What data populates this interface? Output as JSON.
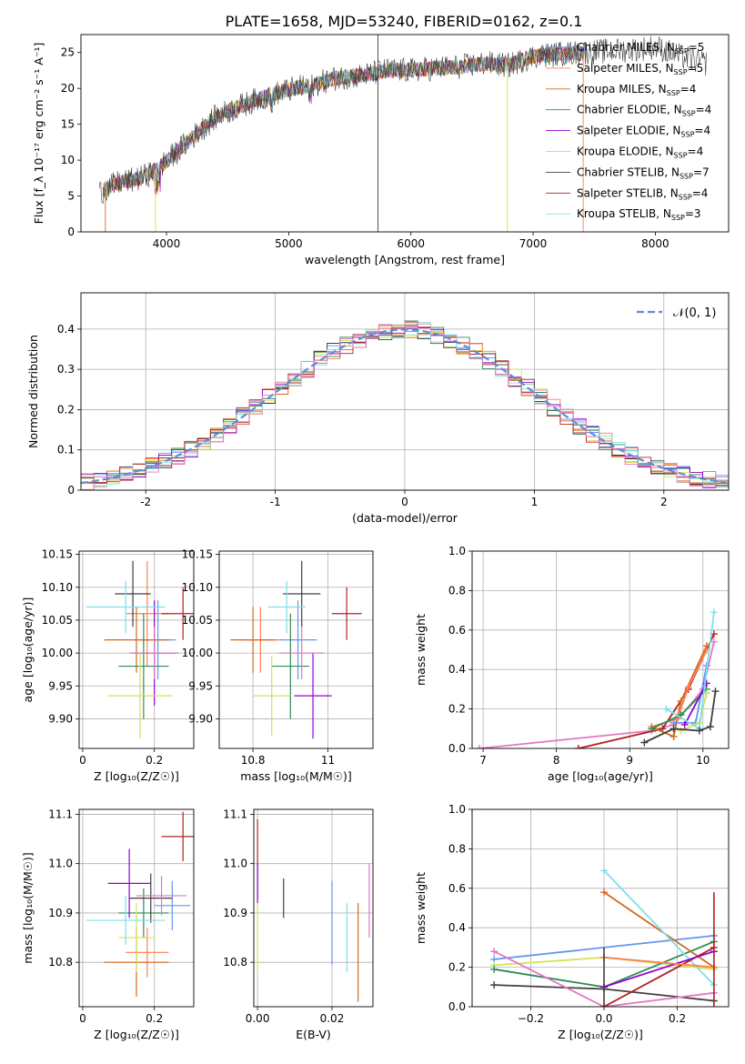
{
  "figure_title": "PLATE=1658, MJD=53240, FIBERID=0162, z=0.1",
  "colors": {
    "chabrier_miles": "#6495ed",
    "salpeter_miles": "#ff7f50",
    "kroupa_miles": "#d2691e",
    "chabrier_elodie": "#2e8b57",
    "salpeter_elodie": "#9400d3",
    "kroupa_elodie": "#d4e157",
    "chabrier_stelib": "#404040",
    "salpeter_stelib": "#b22222",
    "kroupa_stelib": "#80deea",
    "pink": "#e377c2",
    "grey": "#808080",
    "normal": "#5a8fd6"
  },
  "chart_data": [
    {
      "id": "spectrum",
      "type": "line",
      "xlabel": "wavelength [Angstrom, rest frame]",
      "ylabel": "Flux [f_λ 10⁻¹⁷ erg cm⁻² s⁻¹ A⁻¹]",
      "xlim": [
        3300,
        8600
      ],
      "ylim": [
        0,
        27.5
      ],
      "xticks": [
        4000,
        5000,
        6000,
        7000,
        8000
      ],
      "yticks": [
        0,
        5,
        10,
        15,
        20,
        25
      ],
      "grid": false,
      "legend_position": "right",
      "legend": [
        {
          "label": "Chabrier MILES, N",
          "sub": "SSP",
          "suffix": "=5",
          "color": "#6495ed"
        },
        {
          "label": "Salpeter MILES, N",
          "sub": "SSP",
          "suffix": "=5",
          "color": "#ff7f50"
        },
        {
          "label": "Kroupa MILES, N",
          "sub": "SSP",
          "suffix": "=4",
          "color": "#d2691e"
        },
        {
          "label": "Chabrier ELODIE, N",
          "sub": "SSP",
          "suffix": "=4",
          "color": "#2e8b57"
        },
        {
          "label": "Salpeter ELODIE, N",
          "sub": "SSP",
          "suffix": "=4",
          "color": "#9400d3"
        },
        {
          "label": "Kroupa ELODIE, N",
          "sub": "SSP",
          "suffix": "=4",
          "color": "#d4e157"
        },
        {
          "label": "Chabrier STELIB, N",
          "sub": "SSP",
          "suffix": "=7",
          "color": "#404040"
        },
        {
          "label": "Salpeter STELIB, N",
          "sub": "SSP",
          "suffix": "=4",
          "color": "#b22222"
        },
        {
          "label": "Kroupa STELIB, N",
          "sub": "SSP",
          "suffix": "=3",
          "color": "#80deea"
        }
      ],
      "continuum": {
        "x": [
          3450,
          3600,
          3800,
          4000,
          4200,
          4400,
          4600,
          4800,
          5000,
          5200,
          5400,
          5600,
          5800,
          6000,
          6200,
          6400,
          6600,
          6800,
          7000,
          7200,
          7400,
          7600,
          7800,
          8000,
          8200,
          8400
        ],
        "y": [
          5.5,
          6.8,
          7.5,
          9.8,
          13.0,
          16.0,
          17.5,
          18.8,
          19.8,
          20.5,
          21.5,
          21.8,
          22.5,
          22.5,
          22.8,
          23.0,
          23.5,
          23.2,
          24.5,
          24.8,
          25.0,
          25.2,
          25.4,
          25.8,
          24.5,
          23.5
        ]
      },
      "spikes": [
        {
          "x": 3500,
          "y": 0,
          "color": "#d2691e"
        },
        {
          "x": 3910,
          "y": 0,
          "color": "#d4e157"
        },
        {
          "x": 5730,
          "y": 0,
          "color": "#404040"
        },
        {
          "x": 6790,
          "y": 0,
          "color": "#d4e157"
        },
        {
          "x": 7410,
          "y": 0,
          "color": "#ff7f50"
        },
        {
          "x": 5730,
          "y": 27.5,
          "color": "#404040"
        }
      ]
    },
    {
      "id": "residuals",
      "type": "line",
      "xlabel": "(data-model)/error",
      "ylabel": "Normed distribution",
      "xlim": [
        -2.5,
        2.5
      ],
      "ylim": [
        0,
        0.49
      ],
      "xticks": [
        -2,
        -1,
        0,
        1,
        2
      ],
      "yticks": [
        0.0,
        0.1,
        0.2,
        0.3,
        0.4
      ],
      "grid": true,
      "legend_position": "top-right",
      "normal_label": "𝒩(0, 1)",
      "bin_width": 0.1,
      "series_colors": [
        "#6495ed",
        "#ff7f50",
        "#d2691e",
        "#2e8b57",
        "#9400d3",
        "#d4e157",
        "#404040",
        "#b22222",
        "#80deea",
        "#e377c2"
      ]
    },
    {
      "id": "age_vs_Z",
      "type": "scatter",
      "xlabel": "Z [log₁₀(Z/Z☉)]",
      "ylabel": "age  [log₁₀(age/yr)]",
      "xlim": [
        -0.01,
        0.31
      ],
      "ylim": [
        9.855,
        10.155
      ],
      "xticks": [
        0.0,
        0.2
      ],
      "yticks": [
        9.9,
        9.95,
        10.0,
        10.05,
        10.1,
        10.15
      ],
      "ytick_labels": [
        "9.90",
        "9.95",
        "10.00",
        "10.05",
        "10.10",
        "10.15"
      ],
      "grid": true,
      "points": [
        {
          "x": 0.21,
          "y": 10.02,
          "xerr": 0.05,
          "yerr": 0.06,
          "color": "#6495ed"
        },
        {
          "x": 0.18,
          "y": 10.06,
          "xerr": 0.06,
          "yerr": 0.08,
          "color": "#ff7f50"
        },
        {
          "x": 0.15,
          "y": 10.02,
          "xerr": 0.09,
          "yerr": 0.05,
          "color": "#d2691e"
        },
        {
          "x": 0.17,
          "y": 9.98,
          "xerr": 0.07,
          "yerr": 0.08,
          "color": "#2e8b57"
        },
        {
          "x": 0.2,
          "y": 10.0,
          "xerr": 0.06,
          "yerr": 0.08,
          "color": "#9400d3"
        },
        {
          "x": 0.16,
          "y": 9.935,
          "xerr": 0.09,
          "yerr": 0.065,
          "color": "#d4e157"
        },
        {
          "x": 0.14,
          "y": 10.09,
          "xerr": 0.05,
          "yerr": 0.05,
          "color": "#404040"
        },
        {
          "x": 0.28,
          "y": 10.06,
          "xerr": 0.06,
          "yerr": 0.04,
          "color": "#b22222"
        },
        {
          "x": 0.12,
          "y": 10.07,
          "xerr": 0.11,
          "yerr": 0.04,
          "color": "#80deea"
        },
        {
          "x": 0.2,
          "y": 10.0,
          "xerr": 0.07,
          "yerr": 0.04,
          "color": "#e377c2"
        }
      ]
    },
    {
      "id": "age_vs_mass",
      "type": "scatter",
      "xlabel": "mass [log₁₀(M/M☉)]",
      "ylabel": "",
      "xlim": [
        10.71,
        11.12
      ],
      "ylim": [
        9.855,
        10.155
      ],
      "xticks": [
        10.8,
        11.0
      ],
      "yticks": [
        9.9,
        9.95,
        10.0,
        10.05,
        10.1,
        10.15
      ],
      "ytick_labels": [
        "9.90",
        "9.95",
        "10.00",
        "10.05",
        "10.10",
        "10.15"
      ],
      "grid": true,
      "points": [
        {
          "x": 10.92,
          "y": 10.02,
          "xerr": 0.05,
          "yerr": 0.06,
          "color": "#6495ed"
        },
        {
          "x": 10.82,
          "y": 10.02,
          "xerr": 0.05,
          "yerr": 0.05,
          "color": "#ff7f50"
        },
        {
          "x": 10.8,
          "y": 10.02,
          "xerr": 0.06,
          "yerr": 0.05,
          "color": "#d2691e"
        },
        {
          "x": 10.9,
          "y": 9.98,
          "xerr": 0.05,
          "yerr": 0.08,
          "color": "#2e8b57"
        },
        {
          "x": 10.96,
          "y": 9.935,
          "xerr": 0.05,
          "yerr": 0.065,
          "color": "#9400d3"
        },
        {
          "x": 10.85,
          "y": 9.935,
          "xerr": 0.05,
          "yerr": 0.06,
          "color": "#d4e157"
        },
        {
          "x": 10.93,
          "y": 10.09,
          "xerr": 0.05,
          "yerr": 0.05,
          "color": "#404040"
        },
        {
          "x": 11.05,
          "y": 10.06,
          "xerr": 0.04,
          "yerr": 0.04,
          "color": "#b22222"
        },
        {
          "x": 10.89,
          "y": 10.07,
          "xerr": 0.05,
          "yerr": 0.04,
          "color": "#80deea"
        },
        {
          "x": 10.93,
          "y": 10.0,
          "xerr": 0.06,
          "yerr": 0.04,
          "color": "#e377c2"
        }
      ]
    },
    {
      "id": "massweight_vs_age",
      "type": "line",
      "xlabel": "age  [log₁₀(age/yr)]",
      "ylabel": "mass weight",
      "xlim": [
        6.85,
        10.35
      ],
      "ylim": [
        0,
        1.0
      ],
      "xticks": [
        7,
        8,
        9,
        10
      ],
      "yticks": [
        0.0,
        0.2,
        0.4,
        0.6,
        0.8,
        1.0
      ],
      "ytick_labels": [
        "0.0",
        "0.2",
        "0.4",
        "0.6",
        "0.8",
        "1.0"
      ],
      "grid": true,
      "series": [
        {
          "color": "#e377c2",
          "x": [
            6.95,
            9.3,
            9.6,
            10.0,
            10.15
          ],
          "y": [
            0.0,
            0.09,
            0.12,
            0.3,
            0.54
          ]
        },
        {
          "color": "#b22222",
          "x": [
            8.3,
            9.45,
            9.8,
            10.15
          ],
          "y": [
            0.0,
            0.1,
            0.3,
            0.58
          ]
        },
        {
          "color": "#d2691e",
          "x": [
            9.35,
            9.6,
            9.7,
            10.05
          ],
          "y": [
            0.1,
            0.06,
            0.24,
            0.52
          ]
        },
        {
          "color": "#ff7f50",
          "x": [
            9.3,
            9.65,
            9.8,
            10.05
          ],
          "y": [
            0.11,
            0.15,
            0.31,
            0.5
          ]
        },
        {
          "color": "#2e8b57",
          "x": [
            9.3,
            9.7,
            10.05
          ],
          "y": [
            0.1,
            0.17,
            0.3
          ]
        },
        {
          "color": "#6495ed",
          "x": [
            9.6,
            9.9,
            10.05
          ],
          "y": [
            0.13,
            0.13,
            0.42
          ]
        },
        {
          "color": "#9400d3",
          "x": [
            9.75,
            10.05
          ],
          "y": [
            0.12,
            0.33
          ]
        },
        {
          "color": "#d4e157",
          "x": [
            9.7,
            9.95,
            10.05
          ],
          "y": [
            0.09,
            0.13,
            0.28
          ]
        },
        {
          "color": "#80deea",
          "x": [
            9.5,
            9.95,
            10.15
          ],
          "y": [
            0.2,
            0.1,
            0.69
          ]
        },
        {
          "color": "#404040",
          "x": [
            9.2,
            9.6,
            9.95,
            10.1,
            10.17
          ],
          "y": [
            0.03,
            0.1,
            0.09,
            0.11,
            0.29
          ]
        }
      ]
    },
    {
      "id": "mass_vs_Z",
      "type": "scatter",
      "xlabel": "Z [log₁₀(Z/Z☉)]",
      "ylabel": "mass [log₁₀(M/M☉)]",
      "xlim": [
        -0.01,
        0.31
      ],
      "ylim": [
        10.71,
        11.11
      ],
      "xticks": [
        0.0,
        0.2
      ],
      "yticks": [
        10.8,
        10.9,
        11.0,
        11.1
      ],
      "ytick_labels": [
        "10.8",
        "10.9",
        "11.0",
        "11.1"
      ],
      "grid": true,
      "points": [
        {
          "x": 0.25,
          "y": 10.915,
          "xerr": 0.05,
          "yerr": 0.05,
          "color": "#6495ed"
        },
        {
          "x": 0.18,
          "y": 10.82,
          "xerr": 0.06,
          "yerr": 0.05,
          "color": "#ff7f50"
        },
        {
          "x": 0.15,
          "y": 10.8,
          "xerr": 0.09,
          "yerr": 0.07,
          "color": "#d2691e"
        },
        {
          "x": 0.17,
          "y": 10.9,
          "xerr": 0.07,
          "yerr": 0.05,
          "color": "#2e8b57"
        },
        {
          "x": 0.13,
          "y": 10.96,
          "xerr": 0.06,
          "yerr": 0.07,
          "color": "#9400d3"
        },
        {
          "x": 0.15,
          "y": 10.85,
          "xerr": 0.05,
          "yerr": 0.07,
          "color": "#d4e157"
        },
        {
          "x": 0.19,
          "y": 10.93,
          "xerr": 0.06,
          "yerr": 0.05,
          "color": "#404040"
        },
        {
          "x": 0.28,
          "y": 11.055,
          "xerr": 0.06,
          "yerr": 0.05,
          "color": "#b22222"
        },
        {
          "x": 0.12,
          "y": 10.885,
          "xerr": 0.11,
          "yerr": 0.05,
          "color": "#80deea"
        },
        {
          "x": 0.22,
          "y": 10.935,
          "xerr": 0.07,
          "yerr": 0.04,
          "color": "#e377c2"
        }
      ]
    },
    {
      "id": "mass_vs_ebv",
      "type": "scatter",
      "xlabel": "E(B-V)",
      "ylabel": "",
      "xlim": [
        -0.001,
        0.031
      ],
      "ylim": [
        10.71,
        11.11
      ],
      "xticks": [
        0.0,
        0.02
      ],
      "xtick_labels": [
        "0.00",
        "0.02"
      ],
      "yticks": [
        10.8,
        10.9,
        11.0,
        11.1
      ],
      "ytick_labels": [
        "10.8",
        "10.9",
        "11.0",
        "11.1"
      ],
      "grid": true,
      "points": [
        {
          "x": 0.0,
          "y": 11.01,
          "xerr": 0,
          "yerr": 0.08,
          "color": "#b22222"
        },
        {
          "x": 0.0,
          "y": 10.96,
          "xerr": 0,
          "yerr": 0.04,
          "color": "#9400d3"
        },
        {
          "x": 0.0,
          "y": 10.85,
          "xerr": 0,
          "yerr": 0.07,
          "color": "#d4e157"
        },
        {
          "x": 0.007,
          "y": 10.93,
          "xerr": 0,
          "yerr": 0.04,
          "color": "#404040"
        },
        {
          "x": 0.02,
          "y": 10.88,
          "xerr": 0,
          "yerr": 0.085,
          "color": "#6495ed"
        },
        {
          "x": 0.024,
          "y": 10.85,
          "xerr": 0,
          "yerr": 0.07,
          "color": "#80deea"
        },
        {
          "x": 0.027,
          "y": 10.82,
          "xerr": 0,
          "yerr": 0.1,
          "color": "#d2691e"
        },
        {
          "x": 0.03,
          "y": 10.925,
          "xerr": 0,
          "yerr": 0.075,
          "color": "#e377c2"
        }
      ]
    },
    {
      "id": "massweight_vs_Z",
      "type": "line",
      "xlabel": "Z [log₁₀(Z/Z☉)]",
      "ylabel": "mass weight",
      "xlim": [
        -0.36,
        0.34
      ],
      "ylim": [
        0,
        1.0
      ],
      "xticks": [
        -0.2,
        0.0,
        0.2
      ],
      "xtick_labels": [
        "−0.2",
        "0.0",
        "0.2"
      ],
      "yticks": [
        0.0,
        0.2,
        0.4,
        0.6,
        0.8,
        1.0
      ],
      "ytick_labels": [
        "0.0",
        "0.2",
        "0.4",
        "0.6",
        "0.8",
        "1.0"
      ],
      "grid": true,
      "series": [
        {
          "color": "#6495ed",
          "x": [
            -0.3,
            0.3
          ],
          "y": [
            0.24,
            0.36
          ]
        },
        {
          "color": "#d4e157",
          "x": [
            -0.3,
            0.0,
            0.3
          ],
          "y": [
            0.21,
            0.25,
            0.19
          ]
        },
        {
          "color": "#2e8b57",
          "x": [
            -0.3,
            0.0,
            0.3
          ],
          "y": [
            0.19,
            0.1,
            0.33
          ]
        },
        {
          "color": "#404040",
          "x": [
            -0.3,
            0.0,
            0.3
          ],
          "y": [
            0.11,
            0.09,
            0.03
          ]
        },
        {
          "color": "#e377c2",
          "x": [
            -0.3,
            0.0,
            0.3
          ],
          "y": [
            0.28,
            0.0,
            0.07
          ]
        },
        {
          "color": "#d2691e",
          "x": [
            0.0,
            0.3
          ],
          "y": [
            0.58,
            0.2
          ]
        },
        {
          "color": "#80deea",
          "x": [
            0.0,
            0.3
          ],
          "y": [
            0.69,
            0.11
          ]
        },
        {
          "color": "#b22222",
          "x": [
            0.0,
            0.3
          ],
          "y": [
            0.0,
            0.3
          ]
        },
        {
          "color": "#9400d3",
          "x": [
            0.0,
            0.3
          ],
          "y": [
            0.1,
            0.28
          ]
        },
        {
          "color": "#ff7f50",
          "x": [
            0.0,
            0.3
          ],
          "y": [
            0.25,
            0.2
          ]
        }
      ],
      "vertical_markers": [
        {
          "x": 0.3,
          "ymin": 0.0,
          "ymax": 0.58,
          "color": "#b22222"
        },
        {
          "x": 0.0,
          "ymin": 0.0,
          "ymax": 0.3,
          "color": "#404040"
        }
      ]
    }
  ]
}
